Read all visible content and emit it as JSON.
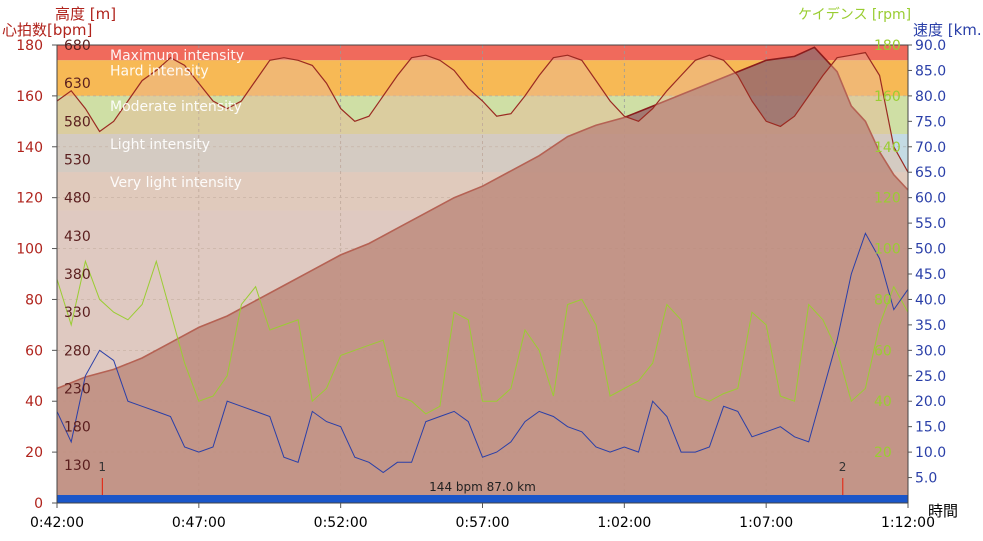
{
  "chart_data": {
    "type": "area",
    "axis_titles": {
      "altitude": "高度 [m]",
      "heart_rate": "心拍数[bpm]",
      "cadence": "ケイデンス [rpm]",
      "speed": "速度 [km.",
      "time": "時間"
    },
    "heart_rate_axis": {
      "ylim": [
        0,
        180
      ],
      "ticks": [
        "0",
        "20",
        "40",
        "60",
        "80",
        "100",
        "120",
        "140",
        "160",
        "180"
      ]
    },
    "altitude_axis": {
      "ylim": [
        80,
        680
      ],
      "ticks": [
        "130",
        "180",
        "230",
        "280",
        "330",
        "380",
        "430",
        "480",
        "530",
        "580",
        "630",
        "680"
      ]
    },
    "cadence_axis": {
      "ylim": [
        0,
        180
      ],
      "ticks": [
        "20",
        "40",
        "60",
        "80",
        "100",
        "120",
        "140",
        "160",
        "180"
      ]
    },
    "speed_axis": {
      "ylim": [
        0,
        90
      ],
      "ticks": [
        "5.0",
        "10.0",
        "15.0",
        "20.0",
        "25.0",
        "30.0",
        "35.0",
        "40.0",
        "45.0",
        "50.0",
        "55.0",
        "60.0",
        "65.0",
        "70.0",
        "75.0",
        "80.0",
        "85.0",
        "90.0"
      ]
    },
    "time_axis": {
      "range_min": [
        0,
        30
      ],
      "ticks": [
        "0:42:00",
        "0:47:00",
        "0:52:00",
        "0:57:00",
        "1:02:00",
        "1:07:00",
        "1:12:00"
      ]
    },
    "zones": [
      {
        "label": "Maximum intensity",
        "from": 174,
        "to": 180,
        "color": "#f06a5c"
      },
      {
        "label": "Hard intensity",
        "from": 160,
        "to": 174,
        "color": "#f7b955"
      },
      {
        "label": "Moderate intensity",
        "from": 145,
        "to": 160,
        "color": "#cfdfa5"
      },
      {
        "label": "Light intensity",
        "from": 130,
        "to": 145,
        "color": "#c4dbe4"
      },
      {
        "label": "Very light intensity",
        "from": 115,
        "to": 130,
        "color": "#d9d9d9"
      }
    ],
    "series": [
      {
        "name": "heart_rate",
        "color": "#9b2a22",
        "fill": "#e8b89a",
        "x": [
          0,
          0.5,
          1,
          1.5,
          2,
          2.5,
          3,
          3.5,
          4,
          4.5,
          5,
          5.5,
          6,
          6.5,
          7,
          7.5,
          8,
          8.5,
          9,
          9.5,
          10,
          10.5,
          11,
          11.5,
          12,
          12.5,
          13,
          13.5,
          14,
          14.5,
          15,
          15.5,
          16,
          16.5,
          17,
          17.5,
          18,
          18.5,
          19,
          19.5,
          20,
          20.5,
          21,
          21.5,
          22,
          22.5,
          23,
          23.5,
          24,
          24.5,
          25,
          25.5,
          26,
          26.5,
          27,
          27.5,
          28,
          28.5,
          29,
          29.5,
          30
        ],
        "y": [
          158,
          162,
          155,
          146,
          150,
          158,
          166,
          170,
          175,
          172,
          165,
          158,
          155,
          158,
          166,
          174,
          175,
          174,
          172,
          165,
          155,
          150,
          152,
          160,
          168,
          175,
          176,
          174,
          170,
          163,
          158,
          152,
          153,
          160,
          168,
          175,
          176,
          174,
          166,
          158,
          152,
          150,
          155,
          162,
          168,
          174,
          176,
          174,
          168,
          158,
          150,
          148,
          152,
          160,
          168,
          175,
          176,
          177,
          168,
          140,
          130
        ]
      },
      {
        "name": "altitude",
        "color": "#8a1c1c",
        "fill": "#9c6b6b",
        "x": [
          0,
          1,
          2,
          3,
          4,
          5,
          6,
          7,
          8,
          9,
          10,
          11,
          12,
          13,
          14,
          15,
          16,
          17,
          18,
          19,
          20,
          21,
          22,
          23,
          24,
          25,
          26,
          26.7,
          27.5,
          28,
          28.5,
          29,
          29.5,
          30
        ],
        "y": [
          230,
          245,
          255,
          270,
          290,
          310,
          325,
          345,
          365,
          385,
          405,
          420,
          440,
          460,
          480,
          495,
          515,
          535,
          560,
          575,
          585,
          600,
          615,
          630,
          645,
          660,
          665,
          677,
          645,
          600,
          580,
          540,
          510,
          490
        ]
      },
      {
        "name": "cadence",
        "color": "#9acd32",
        "x": [
          0,
          0.5,
          1,
          1.5,
          2,
          2.5,
          3,
          3.5,
          4,
          4.5,
          5,
          5.5,
          6,
          6.5,
          7,
          7.5,
          8,
          8.5,
          9,
          9.5,
          10,
          10.5,
          11,
          11.5,
          12,
          12.5,
          13,
          13.5,
          14,
          14.5,
          15,
          15.5,
          16,
          16.5,
          17,
          17.5,
          18,
          18.5,
          19,
          19.5,
          20,
          20.5,
          21,
          21.5,
          22,
          22.5,
          23,
          23.5,
          24,
          24.5,
          25,
          25.5,
          26,
          26.5,
          27,
          27.5,
          28,
          28.5,
          29,
          29.5,
          30
        ],
        "y": [
          88,
          70,
          95,
          80,
          75,
          72,
          78,
          95,
          75,
          55,
          40,
          42,
          50,
          78,
          85,
          68,
          70,
          72,
          40,
          45,
          58,
          60,
          62,
          64,
          42,
          40,
          35,
          38,
          75,
          72,
          40,
          40,
          45,
          68,
          60,
          42,
          78,
          80,
          70,
          42,
          45,
          48,
          55,
          78,
          72,
          42,
          40,
          43,
          45,
          75,
          70,
          42,
          40,
          78,
          72,
          60,
          40,
          45,
          70,
          85,
          75
        ]
      },
      {
        "name": "speed",
        "color": "#2a3fa8",
        "x": [
          0,
          0.5,
          1,
          1.5,
          2,
          2.5,
          3,
          3.5,
          4,
          4.5,
          5,
          5.5,
          6,
          6.5,
          7,
          7.5,
          8,
          8.5,
          9,
          9.5,
          10,
          10.5,
          11,
          11.5,
          12,
          12.5,
          13,
          13.5,
          14,
          14.5,
          15,
          15.5,
          16,
          16.5,
          17,
          17.5,
          18,
          18.5,
          19,
          19.5,
          20,
          20.5,
          21,
          21.5,
          22,
          22.5,
          23,
          23.5,
          24,
          24.5,
          25,
          25.5,
          26,
          26.5,
          27,
          27.5,
          28,
          28.5,
          29,
          29.5,
          30
        ],
        "y": [
          18,
          12,
          25,
          30,
          28,
          20,
          19,
          18,
          17,
          11,
          10,
          11,
          20,
          19,
          18,
          17,
          9,
          8,
          18,
          16,
          15,
          9,
          8,
          6,
          8,
          8,
          16,
          17,
          18,
          16,
          9,
          10,
          12,
          16,
          18,
          17,
          15,
          14,
          11,
          10,
          11,
          10,
          20,
          17,
          10,
          10,
          11,
          19,
          18,
          13,
          14,
          15,
          13,
          12,
          22,
          32,
          45,
          53,
          48,
          38,
          42
        ]
      }
    ],
    "laps": [
      {
        "label": "1",
        "x": 1.6
      },
      {
        "label": "2",
        "x": 27.7
      }
    ],
    "summary_text": "144 bpm  87.0 km"
  }
}
